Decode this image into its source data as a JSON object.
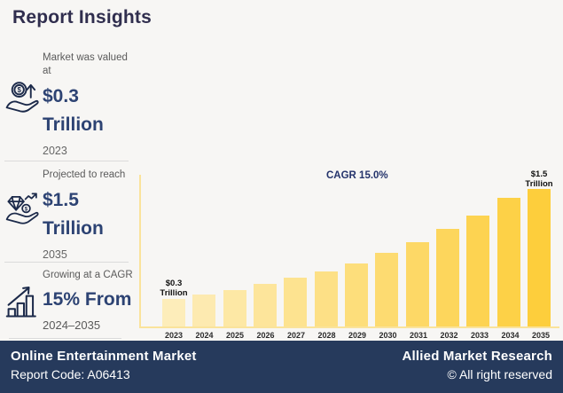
{
  "page": {
    "title": "Report Insights"
  },
  "colors": {
    "background": "#F7F6F4",
    "title": "#302E4E",
    "navy_text": "#2D4373",
    "footer_bg": "#263A5C",
    "cagr_text": "#24336B",
    "axis_line": "#FAE39B",
    "bar_start": "#FDEDBA",
    "bar_end": "#FDCE3C",
    "label_gray": "#5A5A5A",
    "year_gray": "#666666",
    "divider": "#DBDBDB",
    "annotation": "#111111"
  },
  "sidebar": {
    "stats": [
      {
        "label": "Market was valued at",
        "value": "$0.3",
        "unit": "Trillion",
        "year": "2023",
        "icon": "coin-growth-hand-icon"
      },
      {
        "label": "Projected to reach",
        "value": "$1.5",
        "unit": "Trillion",
        "year": "2035",
        "icon": "diamond-hand-icon"
      },
      {
        "label": "Growing at a CAGR",
        "value": "15% From",
        "unit": "",
        "year": "2024–2035",
        "icon": "growth-bars-icon"
      }
    ]
  },
  "chart_data": {
    "type": "bar",
    "title": "",
    "xlabel": "",
    "ylabel": "",
    "unit": "USD Trillion",
    "ylim": [
      0,
      1.5
    ],
    "grid": false,
    "legend": false,
    "categories": [
      "2023",
      "2024",
      "2025",
      "2026",
      "2027",
      "2028",
      "2029",
      "2030",
      "2031",
      "2032",
      "2033",
      "2034",
      "2035"
    ],
    "values": [
      0.3,
      0.35,
      0.4,
      0.46,
      0.53,
      0.6,
      0.69,
      0.8,
      0.92,
      1.06,
      1.21,
      1.4,
      1.5
    ],
    "annotations": {
      "cagr": "CAGR 15.0%",
      "first_line1": "$0.3",
      "first_line2": "Trillion",
      "last_line1": "$1.5",
      "last_line2": "Trillion"
    }
  },
  "footer": {
    "market": "Online Entertainment Market",
    "report_code": "Report Code: A06413",
    "company": "Allied Market Research",
    "copyright": "© All right reserved"
  }
}
